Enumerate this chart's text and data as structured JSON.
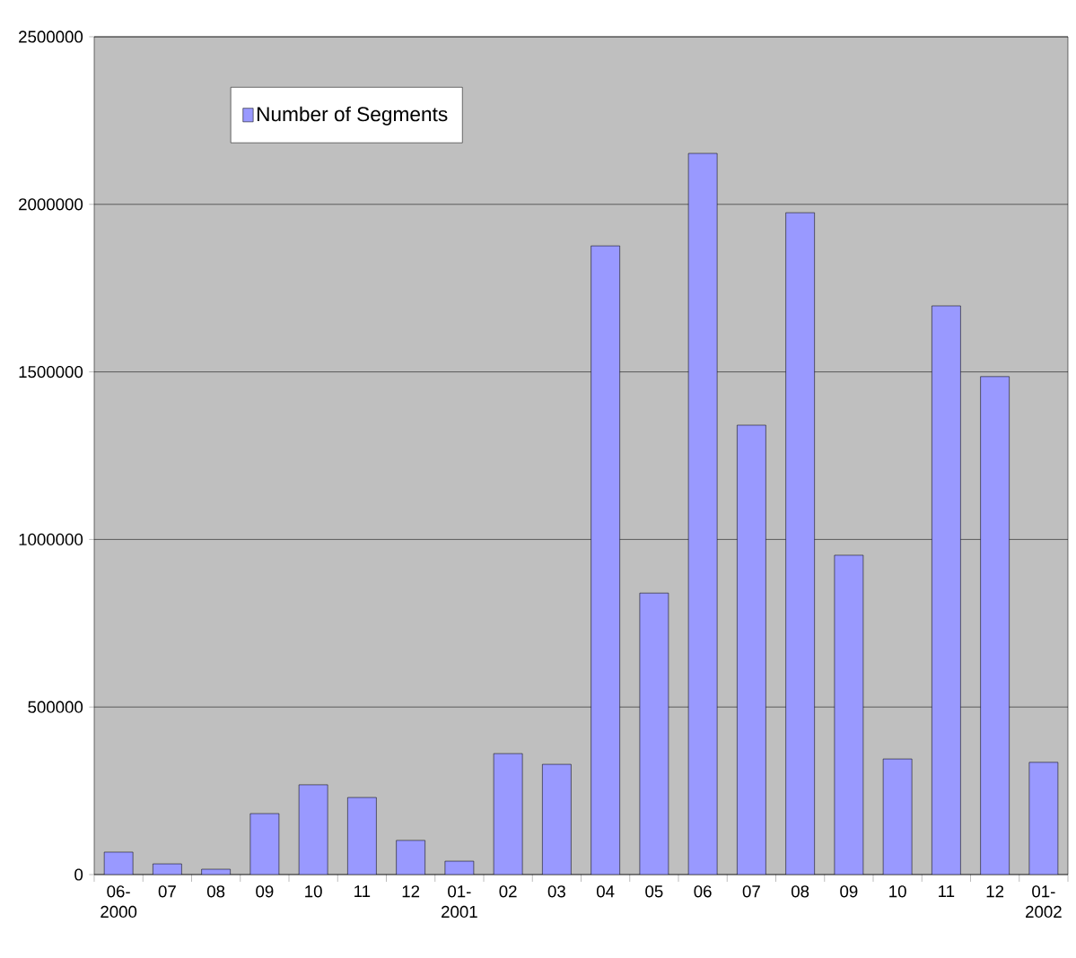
{
  "chart_data": {
    "type": "bar",
    "categories": [
      "06-2000",
      "07",
      "08",
      "09",
      "10",
      "11",
      "12",
      "01-2001",
      "02",
      "03",
      "04",
      "05",
      "06",
      "07",
      "08",
      "09",
      "10",
      "11",
      "12",
      "01-2002"
    ],
    "series": [
      {
        "name": "Number of Segments",
        "color": "#9999ff",
        "values": [
          67000,
          32000,
          16000,
          182000,
          268000,
          230000,
          102000,
          40000,
          361000,
          329000,
          1876000,
          840000,
          2152000,
          1341000,
          1975000,
          953000,
          345000,
          1697000,
          1486000,
          335000
        ]
      }
    ],
    "ylim": [
      0,
      2500000
    ],
    "yticks": [
      0,
      500000,
      1000000,
      1500000,
      2000000,
      2500000
    ],
    "grid": "y",
    "legend": "top left"
  }
}
